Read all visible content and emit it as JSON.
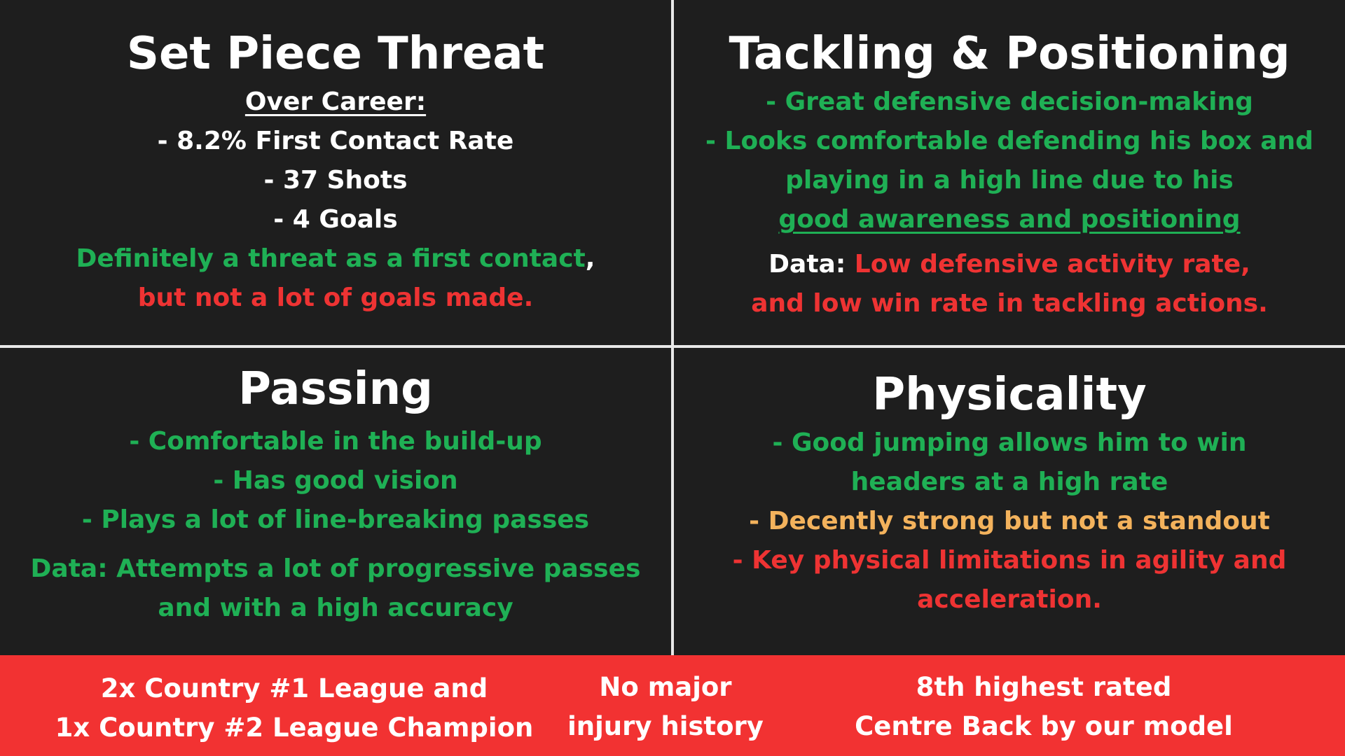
{
  "colors": {
    "background": "#1e1e1e",
    "divider": "#e8e8e8",
    "green": "#1fb055",
    "red": "#ee3333",
    "orange": "#f3b25c",
    "footer": "#f23232"
  },
  "set_piece": {
    "title": "Set Piece Threat",
    "subtitle": "Over Career:",
    "items": [
      "- 8.2% First Contact Rate",
      "- 37 Shots",
      "- 4 Goals"
    ],
    "summary_green": "Definitely a threat as a first contact",
    "summary_comma": ",",
    "summary_red": "but not a lot of goals made."
  },
  "tackling": {
    "title": "Tackling & Positioning",
    "lines": [
      "- Great defensive decision-making",
      "- Looks comfortable defending his box and",
      "playing in a high line due to his",
      "good awareness and positioning"
    ],
    "data_label": "Data:",
    "data_red_1": "Low defensive activity rate,",
    "data_red_2": "and low win rate in tackling actions."
  },
  "passing": {
    "title": "Passing",
    "lines": [
      "- Comfortable in the build-up",
      "- Has good vision",
      "- Plays a lot of line-breaking passes"
    ],
    "data_1": "Data: Attempts a lot of progressive passes",
    "data_2": "and with a high accuracy"
  },
  "physicality": {
    "title": "Physicality",
    "green_1": "- Good jumping allows him to win",
    "green_2": "headers at a high rate",
    "orange_1": "- Decently strong but not a standout",
    "red_1": "- Key physical limitations in agility and",
    "red_2": "acceleration."
  },
  "footer": {
    "honours_1": "2x Country #1 League and",
    "honours_2": "1x Country #2 League Champion",
    "injury_1": "No major",
    "injury_2": "injury history",
    "rating_1": "8th highest rated",
    "rating_2": "Centre Back by our model"
  }
}
